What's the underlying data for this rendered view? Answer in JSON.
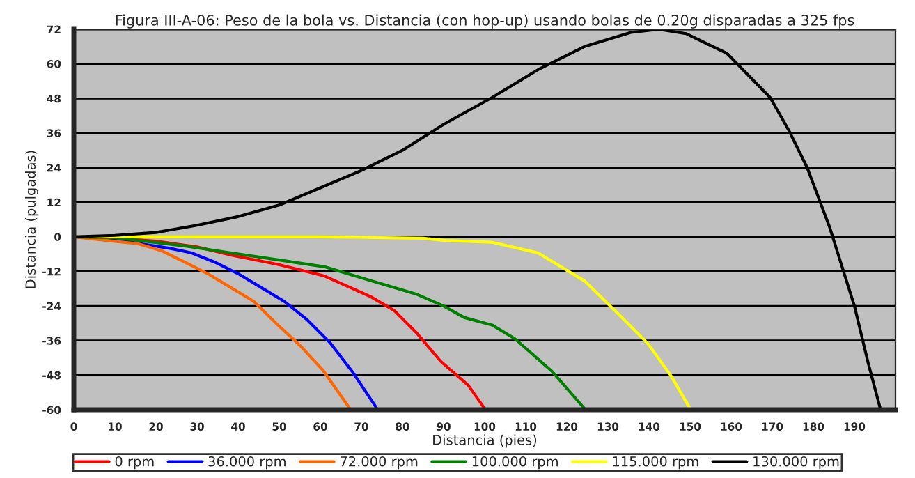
{
  "chart_data": {
    "type": "line",
    "title": "Figura III-A-06: Peso de la bola vs. Distancia (con hop-up) usando bolas de 0.20g disparadas a 325 fps",
    "xlabel": "Distancia (pies)",
    "ylabel": "Distancia (pulgadas)",
    "xlim": [
      0,
      200
    ],
    "xticks": [
      0,
      10,
      20,
      30,
      40,
      50,
      60,
      70,
      80,
      90,
      100,
      110,
      120,
      130,
      140,
      150,
      160,
      170,
      180,
      190
    ],
    "ylim": [
      -60,
      72
    ],
    "yticks": [
      -60,
      -48,
      -36,
      -24,
      -12,
      0,
      12,
      24,
      36,
      48,
      60,
      72
    ],
    "grid": "y",
    "legend": "bottom",
    "marker": "none",
    "line_style": "solid",
    "series": [
      {
        "name": "0 rpm",
        "color": "#ff0000",
        "x": [
          0,
          10,
          20,
          30,
          38.4,
          49.7,
          61,
          72.3,
          78,
          83.6,
          89.3,
          96,
          100
        ],
        "values": [
          0,
          -0.5,
          -1.5,
          -3.5,
          -6.4,
          -9.6,
          -13.6,
          -20.8,
          -25.6,
          -33.6,
          -43.2,
          -51.5,
          -59.6
        ]
      },
      {
        "name": "36.000 rpm",
        "color": "#0000ff",
        "x": [
          0,
          10,
          23.4,
          28.7,
          34.3,
          40,
          45.6,
          51.2,
          56.8,
          62.4,
          68,
          73.6
        ],
        "values": [
          0,
          -1,
          -4,
          -5.6,
          -8.8,
          -12.8,
          -17.6,
          -22.4,
          -28.8,
          -36.8,
          -47.2,
          -59.2
        ]
      },
      {
        "name": "72.000 rpm",
        "color": "#ff6600",
        "x": [
          0,
          10,
          15.6,
          21.3,
          27,
          32.6,
          38.2,
          43.8,
          49.5,
          55,
          60.7,
          67
        ],
        "values": [
          0,
          -1.6,
          -2.4,
          -4.8,
          -8.8,
          -12.8,
          -17.6,
          -22.4,
          -30.4,
          -37.6,
          -46.4,
          -59.2
        ]
      },
      {
        "name": "100.000 rpm",
        "color": "#008000",
        "x": [
          0,
          10,
          27,
          38.4,
          49.7,
          61,
          72.3,
          83.6,
          90,
          95,
          101.8,
          107.4,
          116.4,
          124.3
        ],
        "values": [
          0,
          -0.3,
          -3.2,
          -5.6,
          -8,
          -10.4,
          -15.2,
          -20,
          -24,
          -28,
          -30.6,
          -35.4,
          -46.7,
          -59.6
        ]
      },
      {
        "name": "115.000 rpm",
        "color": "#ffff00",
        "x": [
          0,
          20,
          40,
          60,
          85,
          90.4,
          101.8,
          113,
          124.3,
          133,
          139.7,
          145.4,
          150
        ],
        "values": [
          0,
          0,
          0,
          0,
          -0.5,
          -1.3,
          -1.9,
          -5.6,
          -15.3,
          -27.4,
          -37,
          -48.3,
          -59.6
        ]
      },
      {
        "name": "130.000 rpm",
        "color": "#000000",
        "x": [
          0,
          10,
          20,
          30,
          40,
          50,
          60,
          70,
          80,
          90,
          101.8,
          113,
          124.3,
          135.6,
          142.4,
          149,
          159,
          169.5,
          174,
          178.5,
          184,
          190,
          193.3,
          196.3
        ],
        "values": [
          0,
          0.5,
          1.5,
          4,
          7,
          11,
          17,
          23,
          30,
          39,
          48.3,
          58,
          66,
          70.9,
          72,
          70.5,
          63.6,
          48.3,
          37,
          24,
          3.2,
          -24,
          -43.5,
          -59.6
        ]
      }
    ]
  }
}
